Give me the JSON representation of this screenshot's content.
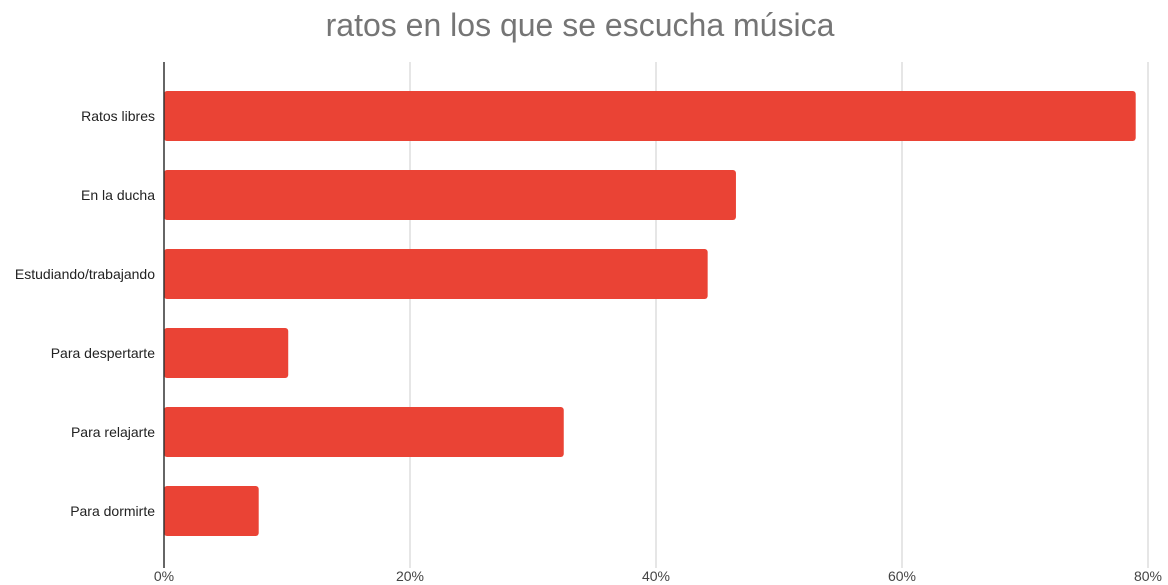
{
  "chart_data": {
    "type": "bar",
    "orientation": "horizontal",
    "title": "ratos en los que se escucha música",
    "categories": [
      "Ratos libres",
      "En la ducha",
      "Estudiando/trabajando",
      "Para despertarte",
      "Para relajarte",
      "Para dormirte"
    ],
    "values": [
      0.79,
      0.465,
      0.442,
      0.101,
      0.325,
      0.077
    ],
    "value_format": "percent",
    "xlim": [
      0,
      0.8
    ],
    "x_ticks": [
      0,
      0.2,
      0.4,
      0.6,
      0.8
    ],
    "x_tick_labels": [
      "0%",
      "20%",
      "40%",
      "60%",
      "80%"
    ],
    "xlabel": "",
    "ylabel": "",
    "grid": true,
    "legend": "none",
    "bar_color": "#ea4335",
    "gridline_color": "#cccccc",
    "title_color": "#757575"
  }
}
